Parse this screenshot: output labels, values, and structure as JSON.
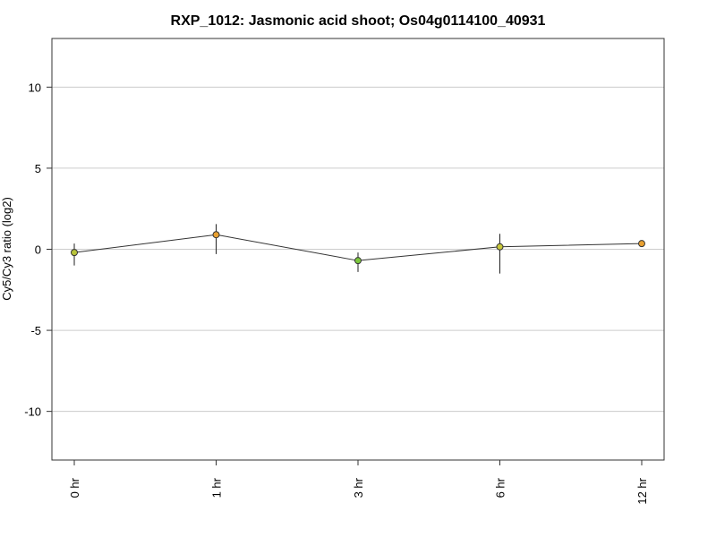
{
  "chart_data": {
    "type": "line",
    "title": "RXP_1012: Jasmonic acid shoot; Os04g0114100_40931",
    "xlabel": "",
    "ylabel": "Cy5/Cy3 ratio (log2)",
    "categories": [
      "0 hr",
      "1 hr",
      "3 hr",
      "6 hr",
      "12 hr"
    ],
    "ylim": [
      -13,
      13
    ],
    "yticks": [
      -10,
      -5,
      0,
      5,
      10
    ],
    "grid": true,
    "series": [
      {
        "values": [
          -0.2,
          0.9,
          -0.7,
          0.15,
          0.35
        ],
        "error_low": [
          -1.0,
          -0.3,
          -1.4,
          -1.5,
          0.35
        ],
        "error_high": [
          0.35,
          1.55,
          -0.2,
          0.95,
          0.35
        ],
        "point_colors": [
          "#b8c43a",
          "#e8a030",
          "#7cc83c",
          "#c8c83a",
          "#e8a030"
        ]
      }
    ],
    "line_color": "#333333",
    "grid_color": "#cccccc"
  }
}
